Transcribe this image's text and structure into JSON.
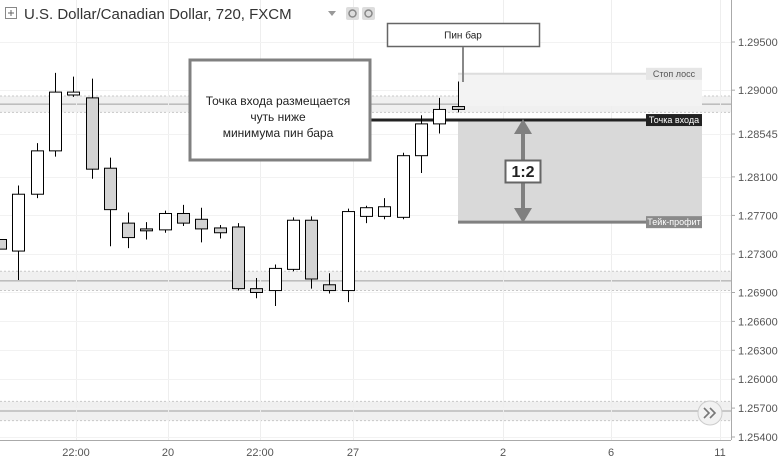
{
  "header": {
    "title": "U.S. Dollar/Canadian Dollar, 720, FXCM"
  },
  "annotations": {
    "pin_bar_label": "Пин бар",
    "entry_note": [
      "Точка входа размещается",
      "чуть ниже",
      "минимума пин бара"
    ],
    "ratio_label": "1:2",
    "stop_loss_tag": "Стоп лосс",
    "entry_tag": "Точка входа",
    "take_profit_tag": "Тейк-профит"
  },
  "icons": {
    "collapse": "collapse-square-icon",
    "settings": [
      "settings-gear-icon",
      "settings-gear-icon"
    ],
    "scroll": "double-chevron-right-icon"
  },
  "colors": {
    "up_candle": "#ffffff",
    "down_candle": "#d3d3d3",
    "candle_outline": "#000000",
    "zone_band": "#f0f0f0",
    "target_box": "#d9d9d9",
    "entry_line": "#222222",
    "level_line": "#808080",
    "entry_tag_bg": "#222222",
    "level_tag_bg": "#8a8a8a",
    "stop_tag_bg": "#e6e6e6",
    "arrow": "#808080"
  },
  "chart_data": {
    "type": "candlestick",
    "title": "U.S. Dollar/Canadian Dollar, 720, FXCM",
    "xlabel": "",
    "ylabel": "",
    "ylim": [
      1.2536,
      1.2974
    ],
    "y_ticks": [
      "1.29500",
      "1.29000",
      "1.28545",
      "1.28100",
      "1.27700",
      "1.27300",
      "1.26900",
      "1.26600",
      "1.26300",
      "1.26000",
      "1.25700",
      "1.25400"
    ],
    "x_ticks": [
      "22:00",
      "20",
      "22:00",
      "27",
      "2",
      "6",
      "11"
    ],
    "grid": true,
    "candles": [
      {
        "open": 1.2745,
        "high": 1.2745,
        "low": 1.2735,
        "close": 1.2735
      },
      {
        "open": 1.2733,
        "high": 1.2801,
        "low": 1.2703,
        "close": 1.2792
      },
      {
        "open": 1.2792,
        "high": 1.2845,
        "low": 1.2788,
        "close": 1.2837
      },
      {
        "open": 1.2837,
        "high": 1.2918,
        "low": 1.2831,
        "close": 1.2898
      },
      {
        "open": 1.2895,
        "high": 1.2914,
        "low": 1.2893,
        "close": 1.2898
      },
      {
        "open": 1.2892,
        "high": 1.2912,
        "low": 1.2808,
        "close": 1.2818
      },
      {
        "open": 1.2819,
        "high": 1.283,
        "low": 1.2738,
        "close": 1.2776
      },
      {
        "open": 1.2762,
        "high": 1.2773,
        "low": 1.2736,
        "close": 1.2747
      },
      {
        "open": 1.2756,
        "high": 1.2763,
        "low": 1.2745,
        "close": 1.2754
      },
      {
        "open": 1.2755,
        "high": 1.2775,
        "low": 1.2752,
        "close": 1.2772
      },
      {
        "open": 1.2772,
        "high": 1.2781,
        "low": 1.2759,
        "close": 1.2762
      },
      {
        "open": 1.2766,
        "high": 1.2778,
        "low": 1.2742,
        "close": 1.2756
      },
      {
        "open": 1.2757,
        "high": 1.276,
        "low": 1.2746,
        "close": 1.2752
      },
      {
        "open": 1.2758,
        "high": 1.2762,
        "low": 1.2692,
        "close": 1.2694
      },
      {
        "open": 1.2694,
        "high": 1.2705,
        "low": 1.2684,
        "close": 1.269
      },
      {
        "open": 1.2692,
        "high": 1.2719,
        "low": 1.2676,
        "close": 1.2715
      },
      {
        "open": 1.2714,
        "high": 1.2768,
        "low": 1.2712,
        "close": 1.2765
      },
      {
        "open": 1.2765,
        "high": 1.2769,
        "low": 1.2694,
        "close": 1.2704
      },
      {
        "open": 1.2698,
        "high": 1.271,
        "low": 1.2689,
        "close": 1.2692
      },
      {
        "open": 1.2692,
        "high": 1.2777,
        "low": 1.268,
        "close": 1.2774
      },
      {
        "open": 1.2769,
        "high": 1.278,
        "low": 1.2762,
        "close": 1.2778
      },
      {
        "open": 1.2769,
        "high": 1.2788,
        "low": 1.2766,
        "close": 1.2779
      },
      {
        "open": 1.2768,
        "high": 1.2835,
        "low": 1.2766,
        "close": 1.2832
      },
      {
        "open": 1.2832,
        "high": 1.2874,
        "low": 1.2814,
        "close": 1.2865
      },
      {
        "open": 1.2865,
        "high": 1.2892,
        "low": 1.2855,
        "close": 1.288
      },
      {
        "open": 1.2883,
        "high": 1.2909,
        "low": 1.2877,
        "close": 1.288
      }
    ],
    "levels": {
      "stop_loss": 1.2917,
      "entry": 1.2869,
      "take_profit": 1.2763
    },
    "zones": [
      [
        1.2877,
        1.2894
      ],
      [
        1.2692,
        1.2712
      ],
      [
        1.2557,
        1.2577
      ]
    ]
  }
}
